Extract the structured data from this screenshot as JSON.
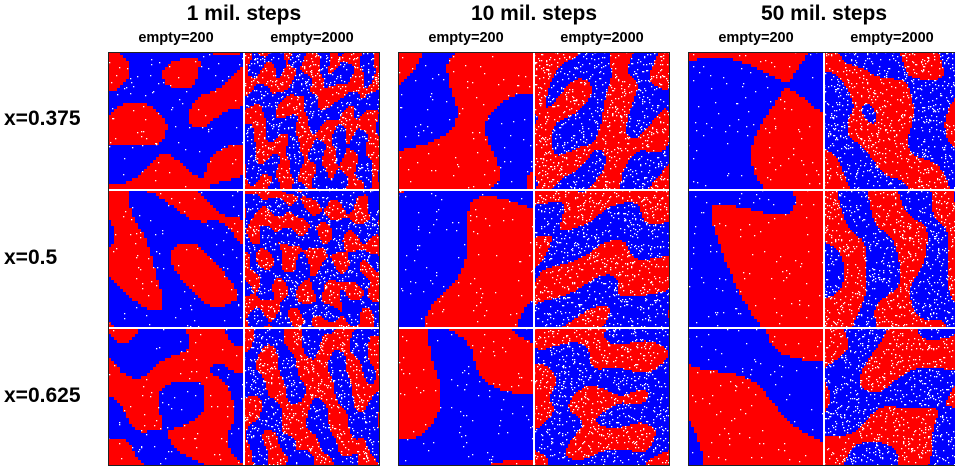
{
  "groups": [
    {
      "title": "1 mil. steps"
    },
    {
      "title": "10 mil. steps"
    },
    {
      "title": "50 mil. steps"
    }
  ],
  "columns": [
    "empty=200",
    "empty=2000"
  ],
  "rows": [
    "x=0.375",
    "x=0.5",
    "x=0.625"
  ],
  "colors": {
    "red": "#ff0000",
    "blue": "#0000ff",
    "vacancy": "#ffffff"
  }
}
